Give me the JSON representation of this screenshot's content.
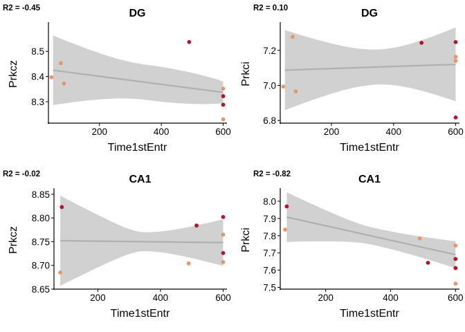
{
  "chart_data": [
    {
      "type": "scatter",
      "r2_label": "R2 = -0.45",
      "title": "DG",
      "xlabel": "Time1stEntr",
      "ylabel": "Prkcz",
      "xlim": [
        35,
        610
      ],
      "ylim": [
        8.215,
        8.605
      ],
      "xticks": [
        200,
        400,
        600
      ],
      "yticks": [
        8.3,
        8.4,
        8.5
      ],
      "ytick_labels": [
        "8.3",
        "8.4",
        "8.5"
      ],
      "fit": {
        "x0": 50,
        "y0": 8.425,
        "x1": 600,
        "y1": 8.337
      },
      "band": {
        "upper": [
          8.563,
          8.38
        ],
        "center_x": 350,
        "center_w": 0.07
      },
      "points": [
        {
          "x": 45,
          "y": 8.397,
          "color": "#e8956b"
        },
        {
          "x": 75,
          "y": 8.453,
          "color": "#e8956b"
        },
        {
          "x": 85,
          "y": 8.372,
          "color": "#e8956b"
        },
        {
          "x": 490,
          "y": 8.537,
          "color": "#b5152b"
        },
        {
          "x": 600,
          "y": 8.352,
          "color": "#e8956b"
        },
        {
          "x": 600,
          "y": 8.322,
          "color": "#b5152b"
        },
        {
          "x": 600,
          "y": 8.288,
          "color": "#b5152b"
        },
        {
          "x": 600,
          "y": 8.23,
          "color": "#e8956b"
        }
      ]
    },
    {
      "type": "scatter",
      "r2_label": "R2 = 0.10",
      "title": "DG",
      "xlabel": "Time1stEntr",
      "ylabel": "Prkci",
      "xlim": [
        35,
        610
      ],
      "ylim": [
        6.785,
        7.345
      ],
      "xticks": [
        200,
        400,
        600
      ],
      "yticks": [
        6.8,
        7.0,
        7.2
      ],
      "ytick_labels": [
        "6.8",
        "7.0",
        "7.2"
      ],
      "fit": {
        "x0": 50,
        "y0": 7.087,
        "x1": 600,
        "y1": 7.12
      },
      "band": {
        "upper": [
          7.315,
          7.33
        ],
        "center_x": 350,
        "center_w": 0.1
      },
      "points": [
        {
          "x": 45,
          "y": 6.993,
          "color": "#e8956b"
        },
        {
          "x": 75,
          "y": 7.277,
          "color": "#e8956b"
        },
        {
          "x": 85,
          "y": 6.966,
          "color": "#e8956b"
        },
        {
          "x": 490,
          "y": 7.243,
          "color": "#b5152b"
        },
        {
          "x": 600,
          "y": 7.247,
          "color": "#b5152b"
        },
        {
          "x": 600,
          "y": 7.163,
          "color": "#e8956b"
        },
        {
          "x": 600,
          "y": 7.14,
          "color": "#e8956b"
        },
        {
          "x": 600,
          "y": 6.817,
          "color": "#b5152b"
        }
      ]
    },
    {
      "type": "scatter",
      "r2_label": "R2 = -0.02",
      "title": "CA1",
      "xlabel": "Time1stEntr",
      "ylabel": "Prkcz",
      "xlim": [
        60,
        610
      ],
      "ylim": [
        8.65,
        8.857
      ],
      "xticks": [
        200,
        400,
        600
      ],
      "yticks": [
        8.65,
        8.7,
        8.75,
        8.8,
        8.85
      ],
      "ytick_labels": [
        "8.65",
        "8.70",
        "8.75",
        "8.80",
        "8.85"
      ],
      "fit": {
        "x0": 80,
        "y0": 8.752,
        "x1": 600,
        "y1": 8.748
      },
      "band": {
        "upper": [
          8.847,
          8.797
        ],
        "center_x": 350,
        "center_w": 0.02
      },
      "points": [
        {
          "x": 80,
          "y": 8.685,
          "color": "#e8956b"
        },
        {
          "x": 85,
          "y": 8.823,
          "color": "#b5152b"
        },
        {
          "x": 490,
          "y": 8.704,
          "color": "#e8956b"
        },
        {
          "x": 515,
          "y": 8.784,
          "color": "#b5152b"
        },
        {
          "x": 600,
          "y": 8.802,
          "color": "#b5152b"
        },
        {
          "x": 600,
          "y": 8.765,
          "color": "#e8956b"
        },
        {
          "x": 600,
          "y": 8.726,
          "color": "#b5152b"
        },
        {
          "x": 600,
          "y": 8.707,
          "color": "#e8956b"
        }
      ]
    },
    {
      "type": "scatter",
      "r2_label": "R2 = -0.82",
      "title": "CA1",
      "xlabel": "Time1stEntr",
      "ylabel": "Prkci",
      "xlim": [
        60,
        610
      ],
      "ylim": [
        7.49,
        8.06
      ],
      "xticks": [
        200,
        400,
        600
      ],
      "yticks": [
        7.5,
        7.6,
        7.7,
        7.8,
        7.9,
        8.0
      ],
      "ytick_labels": [
        "7.5",
        "7.6",
        "7.7",
        "7.8",
        "7.9",
        "8.0"
      ],
      "fit": {
        "x0": 80,
        "y0": 7.908,
        "x1": 600,
        "y1": 7.69
      },
      "band": {
        "upper": [
          8.052,
          7.768
        ],
        "center_x": 350,
        "center_w": 0.05
      },
      "points": [
        {
          "x": 75,
          "y": 7.835,
          "color": "#e8956b"
        },
        {
          "x": 80,
          "y": 7.97,
          "color": "#b5152b"
        },
        {
          "x": 490,
          "y": 7.784,
          "color": "#e8956b"
        },
        {
          "x": 515,
          "y": 7.643,
          "color": "#b5152b"
        },
        {
          "x": 600,
          "y": 7.743,
          "color": "#e8956b"
        },
        {
          "x": 600,
          "y": 7.665,
          "color": "#b5152b"
        },
        {
          "x": 600,
          "y": 7.612,
          "color": "#b5152b"
        },
        {
          "x": 600,
          "y": 7.522,
          "color": "#e8956b"
        }
      ]
    }
  ]
}
